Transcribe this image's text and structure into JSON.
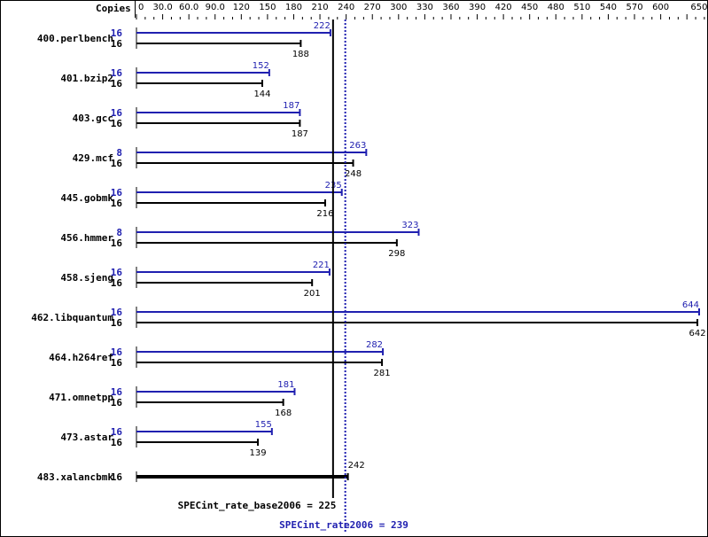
{
  "chart_data": {
    "type": "bar",
    "orientation": "horizontal",
    "copies_header": "Copies",
    "xlim": [
      0,
      650
    ],
    "tick_labels": [
      "0",
      "30.0",
      "60.0",
      "90.0",
      "120",
      "150",
      "180",
      "210",
      "240",
      "270",
      "300",
      "330",
      "360",
      "390",
      "420",
      "450",
      "480",
      "510",
      "540",
      "570",
      "600",
      "650"
    ],
    "categories": [
      "400.perlbench",
      "401.bzip2",
      "403.gcc",
      "429.mcf",
      "445.gobmk",
      "456.hmmer",
      "458.sjeng",
      "462.libquantum",
      "464.h264ref",
      "471.omnetpp",
      "473.astar",
      "483.xalancbmk"
    ],
    "series": [
      {
        "name": "SPECint_rate2006",
        "color": "#2020b0",
        "copies": [
          16,
          16,
          16,
          8,
          16,
          8,
          16,
          16,
          16,
          16,
          16,
          null
        ],
        "values": [
          222,
          152,
          187,
          263,
          235,
          323,
          221,
          644,
          282,
          181,
          155,
          null
        ]
      },
      {
        "name": "SPECint_rate_base2006",
        "color": "#000000",
        "copies": [
          16,
          16,
          16,
          16,
          16,
          16,
          16,
          16,
          16,
          16,
          16,
          16
        ],
        "values": [
          188,
          144,
          187,
          248,
          216,
          298,
          201,
          642,
          281,
          168,
          139,
          242
        ]
      }
    ],
    "reference_lines": [
      {
        "label": "SPECint_rate_base2006 = 225",
        "value": 225,
        "color": "#000000",
        "style": "solid"
      },
      {
        "label": "SPECint_rate2006 = 239",
        "value": 239,
        "color": "#2020b0",
        "style": "dotted"
      }
    ]
  }
}
